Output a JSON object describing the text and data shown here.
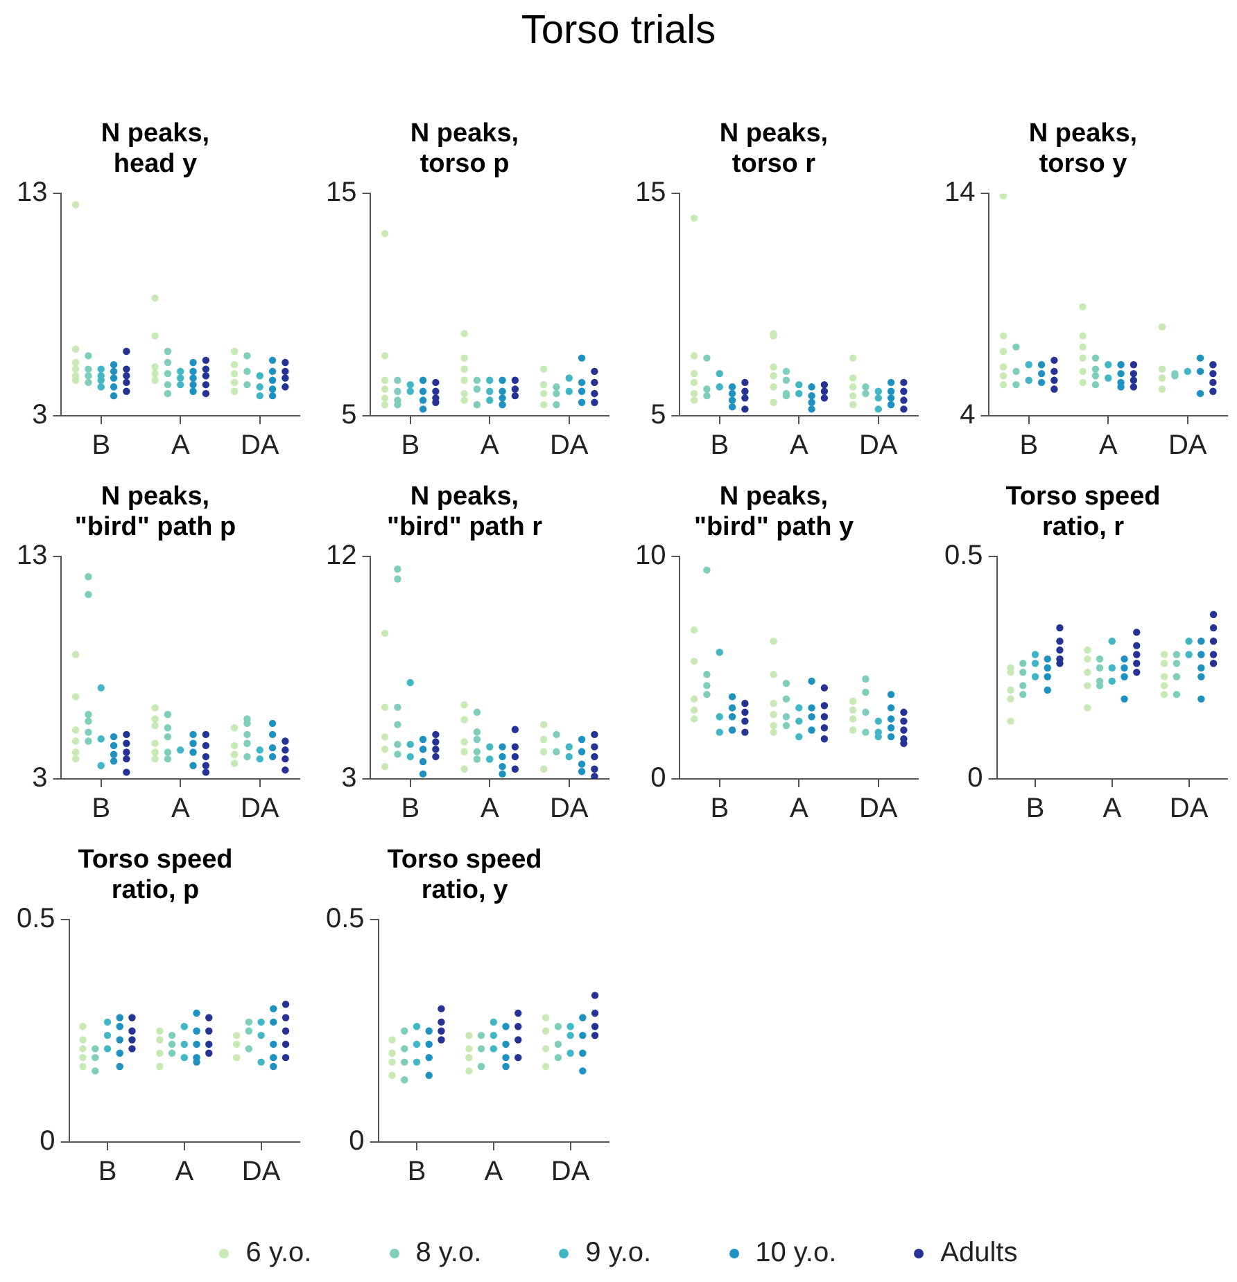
{
  "chart_data": [
    {
      "type": "scatter",
      "title": "N peaks, head y",
      "annotations": [
        "Torso trials"
      ],
      "legend": "bottom",
      "marker": "circle",
      "categories": [
        "B",
        "A",
        "DA"
      ],
      "ylim": [
        3,
        13
      ],
      "yticks": [
        3,
        13
      ],
      "series": [
        {
          "name": "6 y.o.",
          "color": "#c7e9b4",
          "x": [
            "B",
            "B",
            "B",
            "B",
            "B",
            "B",
            "A",
            "A",
            "A",
            "A",
            "A",
            "DA",
            "DA",
            "DA",
            "DA",
            "DA"
          ],
          "values": [
            12.5,
            6.0,
            5.4,
            5.1,
            4.8,
            4.6,
            8.3,
            6.6,
            5.2,
            4.9,
            4.6,
            5.9,
            5.3,
            4.9,
            4.5,
            4.1
          ]
        },
        {
          "name": "8 y.o.",
          "color": "#7fcdbb",
          "x": [
            "B",
            "B",
            "B",
            "B",
            "A",
            "A",
            "A",
            "A",
            "A",
            "DA",
            "DA",
            "DA"
          ],
          "values": [
            5.7,
            5.1,
            4.8,
            4.5,
            5.9,
            5.4,
            4.9,
            4.4,
            4.0,
            5.7,
            5.0,
            4.4
          ]
        },
        {
          "name": "9 y.o.",
          "color": "#41b6c4",
          "x": [
            "B",
            "B",
            "B",
            "B",
            "A",
            "A",
            "A",
            "DA",
            "DA",
            "DA"
          ],
          "values": [
            5.1,
            4.8,
            4.6,
            4.3,
            5.0,
            4.7,
            4.4,
            4.8,
            4.3,
            3.9
          ]
        },
        {
          "name": "10 y.o.",
          "color": "#1d91c0",
          "x": [
            "B",
            "B",
            "B",
            "B",
            "B",
            "A",
            "A",
            "A",
            "A",
            "A",
            "DA",
            "DA",
            "DA",
            "DA",
            "DA"
          ],
          "values": [
            5.3,
            5.0,
            4.7,
            4.3,
            3.9,
            5.4,
            5.0,
            4.7,
            4.4,
            4.1,
            5.5,
            5.0,
            4.6,
            4.2,
            3.9
          ]
        },
        {
          "name": "Adults",
          "color": "#253494",
          "x": [
            "B",
            "B",
            "B",
            "B",
            "B",
            "A",
            "A",
            "A",
            "A",
            "A",
            "DA",
            "DA",
            "DA",
            "DA"
          ],
          "values": [
            5.9,
            5.1,
            4.8,
            4.5,
            4.1,
            5.5,
            5.1,
            4.8,
            4.4,
            4.0,
            5.4,
            5.0,
            4.7,
            4.3
          ]
        }
      ]
    },
    {
      "type": "scatter",
      "title": "N peaks, torso p",
      "marker": "circle",
      "categories": [
        "B",
        "A",
        "DA"
      ],
      "ylim": [
        5,
        15
      ],
      "yticks": [
        5,
        15
      ],
      "series": [
        {
          "color": "#c7e9b4",
          "x": [
            "B",
            "B",
            "B",
            "B",
            "B",
            "B",
            "A",
            "A",
            "A",
            "A",
            "A",
            "A",
            "DA",
            "DA",
            "DA",
            "DA"
          ],
          "values": [
            13.2,
            7.7,
            6.6,
            6.2,
            5.8,
            5.5,
            8.7,
            7.6,
            7.1,
            6.6,
            6.0,
            5.7,
            7.1,
            6.4,
            6.0,
            5.5
          ]
        },
        {
          "color": "#7fcdbb",
          "x": [
            "B",
            "B",
            "B",
            "B",
            "A",
            "A",
            "A",
            "DA",
            "DA",
            "DA"
          ],
          "values": [
            6.6,
            6.1,
            5.7,
            5.5,
            6.6,
            6.2,
            5.5,
            6.3,
            6.0,
            5.5
          ]
        },
        {
          "color": "#41b6c4",
          "x": [
            "B",
            "B",
            "A",
            "A",
            "A",
            "DA",
            "DA"
          ],
          "values": [
            6.4,
            6.1,
            6.6,
            6.1,
            5.7,
            6.7,
            6.1
          ]
        },
        {
          "color": "#1d91c0",
          "x": [
            "B",
            "B",
            "B",
            "B",
            "A",
            "A",
            "A",
            "A",
            "DA",
            "DA",
            "DA",
            "DA"
          ],
          "values": [
            6.6,
            6.1,
            5.7,
            5.3,
            6.6,
            6.1,
            5.8,
            5.5,
            7.6,
            6.5,
            6.1,
            5.6
          ]
        },
        {
          "color": "#253494",
          "x": [
            "B",
            "B",
            "B",
            "B",
            "A",
            "A",
            "A",
            "DA",
            "DA",
            "DA",
            "DA"
          ],
          "values": [
            6.5,
            6.1,
            5.8,
            5.6,
            6.6,
            6.2,
            5.9,
            7.0,
            6.5,
            6.0,
            5.6
          ]
        }
      ]
    },
    {
      "type": "scatter",
      "title": "N peaks, torso r",
      "marker": "circle",
      "categories": [
        "B",
        "A",
        "DA"
      ],
      "ylim": [
        5,
        15
      ],
      "yticks": [
        5,
        15
      ],
      "series": [
        {
          "color": "#c7e9b4",
          "x": [
            "B",
            "B",
            "B",
            "B",
            "B",
            "B",
            "A",
            "A",
            "A",
            "A",
            "A",
            "A",
            "DA",
            "DA",
            "DA",
            "DA",
            "DA"
          ],
          "values": [
            13.9,
            7.7,
            6.9,
            6.5,
            6.0,
            5.7,
            8.7,
            8.6,
            7.2,
            6.8,
            6.3,
            5.6,
            7.6,
            6.7,
            6.3,
            5.9,
            5.5
          ]
        },
        {
          "color": "#7fcdbb",
          "x": [
            "B",
            "B",
            "B",
            "A",
            "A",
            "A",
            "A",
            "DA",
            "DA"
          ],
          "values": [
            7.6,
            6.2,
            5.9,
            7.0,
            6.6,
            6.0,
            5.9,
            6.3,
            6.0
          ]
        },
        {
          "color": "#41b6c4",
          "x": [
            "B",
            "B",
            "A",
            "A",
            "DA",
            "DA",
            "DA"
          ],
          "values": [
            6.9,
            6.3,
            6.4,
            6.0,
            6.1,
            5.8,
            5.3
          ]
        },
        {
          "color": "#1d91c0",
          "x": [
            "B",
            "B",
            "B",
            "B",
            "A",
            "A",
            "A",
            "A",
            "DA",
            "DA",
            "DA",
            "DA"
          ],
          "values": [
            6.3,
            6.0,
            5.7,
            5.4,
            6.3,
            5.9,
            5.6,
            5.3,
            6.5,
            6.1,
            5.8,
            5.5
          ]
        },
        {
          "color": "#253494",
          "x": [
            "B",
            "B",
            "B",
            "B",
            "A",
            "A",
            "A",
            "DA",
            "DA",
            "DA",
            "DA"
          ],
          "values": [
            6.5,
            6.1,
            5.8,
            5.3,
            6.4,
            6.1,
            5.8,
            6.5,
            6.1,
            5.7,
            5.3
          ]
        }
      ]
    },
    {
      "type": "scatter",
      "title": "N peaks, torso y",
      "marker": "circle",
      "categories": [
        "B",
        "A",
        "DA"
      ],
      "ylim": [
        4,
        14
      ],
      "yticks": [
        4,
        14
      ],
      "series": [
        {
          "color": "#c7e9b4",
          "x": [
            "B",
            "B",
            "B",
            "B",
            "B",
            "B",
            "A",
            "A",
            "A",
            "A",
            "A",
            "A",
            "DA",
            "DA",
            "DA",
            "DA"
          ],
          "values": [
            13.9,
            7.6,
            6.9,
            6.2,
            5.8,
            5.4,
            8.9,
            7.6,
            7.1,
            6.6,
            6.0,
            5.5,
            8.0,
            6.1,
            5.7,
            5.2
          ]
        },
        {
          "color": "#7fcdbb",
          "x": [
            "B",
            "B",
            "B",
            "A",
            "A",
            "A",
            "A",
            "DA",
            "DA"
          ],
          "values": [
            7.1,
            6.0,
            5.4,
            6.6,
            6.1,
            5.8,
            5.4,
            5.9,
            5.8
          ]
        },
        {
          "color": "#41b6c4",
          "x": [
            "B",
            "B",
            "A",
            "A",
            "DA"
          ],
          "values": [
            6.3,
            5.6,
            6.3,
            5.7,
            6.0
          ]
        },
        {
          "color": "#1d91c0",
          "x": [
            "B",
            "B",
            "B",
            "A",
            "A",
            "A",
            "A",
            "DA",
            "DA",
            "DA"
          ],
          "values": [
            6.3,
            5.9,
            5.5,
            6.3,
            5.9,
            5.5,
            5.3,
            6.6,
            6.0,
            5.0
          ]
        },
        {
          "color": "#253494",
          "x": [
            "B",
            "B",
            "B",
            "B",
            "A",
            "A",
            "A",
            "A",
            "DA",
            "DA",
            "DA",
            "DA"
          ],
          "values": [
            6.5,
            6.0,
            5.6,
            5.2,
            6.3,
            5.9,
            5.6,
            5.3,
            6.3,
            5.9,
            5.5,
            5.1
          ]
        }
      ]
    },
    {
      "type": "scatter",
      "title": "N peaks, \"bird\" path p",
      "marker": "circle",
      "categories": [
        "B",
        "A",
        "DA"
      ],
      "ylim": [
        3,
        13
      ],
      "yticks": [
        3,
        13
      ],
      "series": [
        {
          "color": "#c7e9b4",
          "x": [
            "B",
            "B",
            "B",
            "B",
            "B",
            "B",
            "A",
            "A",
            "A",
            "A",
            "A",
            "A",
            "DA",
            "DA",
            "DA",
            "DA"
          ],
          "values": [
            8.6,
            6.7,
            5.2,
            4.7,
            4.2,
            3.9,
            6.2,
            5.7,
            5.4,
            4.6,
            4.2,
            3.9,
            5.3,
            4.5,
            4.1,
            3.7
          ]
        },
        {
          "color": "#7fcdbb",
          "x": [
            "B",
            "B",
            "B",
            "B",
            "B",
            "B",
            "A",
            "A",
            "A",
            "A",
            "A",
            "DA",
            "DA",
            "DA",
            "DA",
            "DA"
          ],
          "values": [
            12.1,
            11.3,
            5.9,
            5.6,
            5.1,
            4.7,
            5.9,
            5.3,
            4.9,
            4.2,
            3.9,
            5.7,
            5.5,
            5.0,
            4.6,
            4.0
          ]
        },
        {
          "color": "#41b6c4",
          "x": [
            "B",
            "B",
            "B",
            "A",
            "DA",
            "DA"
          ],
          "values": [
            7.1,
            4.8,
            3.6,
            4.3,
            4.3,
            3.9
          ]
        },
        {
          "color": "#1d91c0",
          "x": [
            "B",
            "B",
            "B",
            "B",
            "A",
            "A",
            "A",
            "A",
            "DA",
            "DA",
            "DA",
            "DA"
          ],
          "values": [
            4.9,
            4.5,
            4.1,
            3.8,
            5.0,
            4.6,
            4.2,
            3.6,
            5.5,
            5.0,
            4.4,
            4.0
          ]
        },
        {
          "color": "#253494",
          "x": [
            "B",
            "B",
            "B",
            "B",
            "B",
            "A",
            "A",
            "A",
            "A",
            "A",
            "DA",
            "DA",
            "DA",
            "DA"
          ],
          "values": [
            5.0,
            4.6,
            4.2,
            3.9,
            3.3,
            5.0,
            4.5,
            4.0,
            3.6,
            3.3,
            4.7,
            4.3,
            3.9,
            3.4
          ]
        }
      ]
    },
    {
      "type": "scatter",
      "title": "N peaks, \"bird\" path r",
      "marker": "circle",
      "categories": [
        "B",
        "A",
        "DA"
      ],
      "ylim": [
        3,
        12
      ],
      "yticks": [
        3,
        12
      ],
      "series": [
        {
          "color": "#c7e9b4",
          "x": [
            "B",
            "B",
            "B",
            "B",
            "B",
            "A",
            "A",
            "A",
            "A",
            "A",
            "DA",
            "DA",
            "DA",
            "DA"
          ],
          "values": [
            8.9,
            5.9,
            4.7,
            4.2,
            3.5,
            6.0,
            5.4,
            4.5,
            4.1,
            3.4,
            5.2,
            4.6,
            4.1,
            3.4
          ]
        },
        {
          "color": "#7fcdbb",
          "x": [
            "B",
            "B",
            "B",
            "B",
            "B",
            "B",
            "A",
            "A",
            "A",
            "A",
            "A",
            "DA",
            "DA"
          ],
          "values": [
            11.5,
            11.1,
            5.9,
            5.2,
            4.4,
            4.0,
            5.7,
            4.9,
            4.6,
            4.1,
            3.8,
            4.8,
            4.1
          ]
        },
        {
          "color": "#41b6c4",
          "x": [
            "B",
            "B",
            "B",
            "A",
            "A",
            "DA",
            "DA"
          ],
          "values": [
            6.9,
            4.4,
            3.9,
            4.3,
            3.8,
            4.3,
            3.9
          ]
        },
        {
          "color": "#1d91c0",
          "x": [
            "B",
            "B",
            "B",
            "B",
            "A",
            "A",
            "A",
            "A",
            "DA",
            "DA",
            "DA",
            "DA"
          ],
          "values": [
            4.6,
            4.2,
            3.7,
            3.2,
            4.3,
            3.9,
            3.5,
            3.2,
            4.6,
            4.1,
            3.6,
            3.3
          ]
        },
        {
          "color": "#253494",
          "x": [
            "B",
            "B",
            "B",
            "B",
            "A",
            "A",
            "A",
            "A",
            "DA",
            "DA",
            "DA",
            "DA",
            "DA"
          ],
          "values": [
            4.8,
            4.5,
            4.2,
            3.9,
            5.0,
            4.3,
            3.9,
            3.4,
            4.8,
            4.3,
            3.9,
            3.4,
            3.1
          ]
        }
      ]
    },
    {
      "type": "scatter",
      "title": "N peaks, \"bird\" path y",
      "marker": "circle",
      "categories": [
        "B",
        "A",
        "DA"
      ],
      "ylim": [
        0,
        10
      ],
      "yticks": [
        0,
        10
      ],
      "series": [
        {
          "color": "#c7e9b4",
          "x": [
            "B",
            "B",
            "B",
            "B",
            "B",
            "A",
            "A",
            "A",
            "A",
            "A",
            "A",
            "DA",
            "DA",
            "DA",
            "DA"
          ],
          "values": [
            6.7,
            5.3,
            3.6,
            3.1,
            2.7,
            6.2,
            4.7,
            3.4,
            2.9,
            2.4,
            2.1,
            3.5,
            3.1,
            2.7,
            2.2
          ]
        },
        {
          "color": "#7fcdbb",
          "x": [
            "B",
            "B",
            "B",
            "B",
            "A",
            "A",
            "A",
            "A",
            "DA",
            "DA",
            "DA",
            "DA"
          ],
          "values": [
            9.4,
            4.7,
            4.2,
            3.8,
            4.3,
            3.6,
            2.8,
            2.4,
            4.5,
            3.9,
            3.0,
            2.1
          ]
        },
        {
          "color": "#41b6c4",
          "x": [
            "B",
            "B",
            "B",
            "A",
            "A",
            "A",
            "DA",
            "DA",
            "DA"
          ],
          "values": [
            5.7,
            2.8,
            2.1,
            3.2,
            2.6,
            1.9,
            2.6,
            2.1,
            1.9
          ]
        },
        {
          "color": "#1d91c0",
          "x": [
            "B",
            "B",
            "B",
            "B",
            "A",
            "A",
            "A",
            "A",
            "DA",
            "DA",
            "DA",
            "DA",
            "DA"
          ],
          "values": [
            3.7,
            3.2,
            2.8,
            2.2,
            4.4,
            3.2,
            2.8,
            2.2,
            3.8,
            3.2,
            2.7,
            2.3,
            1.9
          ]
        },
        {
          "color": "#253494",
          "x": [
            "B",
            "B",
            "B",
            "B",
            "A",
            "A",
            "A",
            "A",
            "A",
            "DA",
            "DA",
            "DA",
            "DA",
            "DA"
          ],
          "values": [
            3.4,
            3.0,
            2.6,
            2.1,
            4.1,
            3.3,
            2.8,
            2.3,
            1.8,
            3.0,
            2.6,
            2.2,
            1.8,
            1.6
          ]
        }
      ]
    },
    {
      "type": "scatter",
      "title": "Torso speed ratio, r",
      "marker": "circle",
      "categories": [
        "B",
        "A",
        "DA"
      ],
      "ylim": [
        0,
        0.5
      ],
      "yticks": [
        0,
        0.5
      ],
      "series": [
        {
          "color": "#c7e9b4",
          "x": [
            "B",
            "B",
            "B",
            "B",
            "B",
            "A",
            "A",
            "A",
            "A",
            "A",
            "DA",
            "DA",
            "DA",
            "DA",
            "DA"
          ],
          "values": [
            0.25,
            0.24,
            0.2,
            0.18,
            0.13,
            0.29,
            0.27,
            0.24,
            0.21,
            0.16,
            0.28,
            0.26,
            0.23,
            0.21,
            0.19
          ]
        },
        {
          "color": "#7fcdbb",
          "x": [
            "B",
            "B",
            "B",
            "B",
            "A",
            "A",
            "A",
            "A",
            "DA",
            "DA",
            "DA",
            "DA"
          ],
          "values": [
            0.26,
            0.24,
            0.21,
            0.19,
            0.27,
            0.25,
            0.22,
            0.21,
            0.28,
            0.26,
            0.23,
            0.19
          ]
        },
        {
          "color": "#41b6c4",
          "x": [
            "B",
            "B",
            "B",
            "A",
            "A",
            "A",
            "DA",
            "DA"
          ],
          "values": [
            0.28,
            0.26,
            0.23,
            0.31,
            0.25,
            0.22,
            0.31,
            0.28
          ]
        },
        {
          "color": "#1d91c0",
          "x": [
            "B",
            "B",
            "B",
            "B",
            "A",
            "A",
            "A",
            "A",
            "DA",
            "DA",
            "DA",
            "DA",
            "DA"
          ],
          "values": [
            0.27,
            0.25,
            0.23,
            0.2,
            0.27,
            0.25,
            0.23,
            0.18,
            0.31,
            0.28,
            0.25,
            0.23,
            0.18
          ]
        },
        {
          "color": "#253494",
          "x": [
            "B",
            "B",
            "B",
            "B",
            "B",
            "A",
            "A",
            "A",
            "A",
            "A",
            "DA",
            "DA",
            "DA",
            "DA",
            "DA"
          ],
          "values": [
            0.34,
            0.31,
            0.29,
            0.27,
            0.26,
            0.33,
            0.3,
            0.28,
            0.26,
            0.24,
            0.37,
            0.34,
            0.31,
            0.28,
            0.26
          ]
        }
      ]
    },
    {
      "type": "scatter",
      "title": "Torso speed ratio, p",
      "marker": "circle",
      "categories": [
        "B",
        "A",
        "DA"
      ],
      "ylim": [
        0,
        0.5
      ],
      "yticks": [
        0,
        0.5
      ],
      "series": [
        {
          "color": "#c7e9b4",
          "x": [
            "B",
            "B",
            "B",
            "B",
            "B",
            "A",
            "A",
            "A",
            "A",
            "DA",
            "DA",
            "DA"
          ],
          "values": [
            0.26,
            0.23,
            0.21,
            0.19,
            0.17,
            0.25,
            0.23,
            0.2,
            0.17,
            0.24,
            0.22,
            0.19
          ]
        },
        {
          "color": "#7fcdbb",
          "x": [
            "B",
            "B",
            "B",
            "A",
            "A",
            "A",
            "DA",
            "DA",
            "DA"
          ],
          "values": [
            0.21,
            0.19,
            0.16,
            0.24,
            0.22,
            0.2,
            0.27,
            0.25,
            0.21
          ]
        },
        {
          "color": "#41b6c4",
          "x": [
            "B",
            "B",
            "B",
            "A",
            "A",
            "A",
            "DA",
            "DA",
            "DA"
          ],
          "values": [
            0.27,
            0.24,
            0.21,
            0.26,
            0.22,
            0.19,
            0.27,
            0.24,
            0.18
          ]
        },
        {
          "color": "#1d91c0",
          "x": [
            "B",
            "B",
            "B",
            "B",
            "B",
            "A",
            "A",
            "A",
            "A",
            "A",
            "DA",
            "DA",
            "DA",
            "DA",
            "DA"
          ],
          "values": [
            0.28,
            0.26,
            0.23,
            0.2,
            0.17,
            0.29,
            0.25,
            0.22,
            0.19,
            0.18,
            0.3,
            0.27,
            0.22,
            0.19,
            0.17
          ]
        },
        {
          "color": "#253494",
          "x": [
            "B",
            "B",
            "B",
            "B",
            "A",
            "A",
            "A",
            "A",
            "DA",
            "DA",
            "DA",
            "DA",
            "DA"
          ],
          "values": [
            0.28,
            0.25,
            0.23,
            0.21,
            0.28,
            0.25,
            0.22,
            0.2,
            0.31,
            0.28,
            0.25,
            0.22,
            0.19
          ]
        }
      ]
    },
    {
      "type": "scatter",
      "title": "Torso speed ratio, y",
      "marker": "circle",
      "categories": [
        "B",
        "A",
        "DA"
      ],
      "ylim": [
        0,
        0.5
      ],
      "yticks": [
        0,
        0.5
      ],
      "series": [
        {
          "color": "#c7e9b4",
          "x": [
            "B",
            "B",
            "B",
            "B",
            "A",
            "A",
            "A",
            "A",
            "DA",
            "DA",
            "DA",
            "DA"
          ],
          "values": [
            0.23,
            0.2,
            0.18,
            0.15,
            0.24,
            0.21,
            0.19,
            0.16,
            0.28,
            0.25,
            0.21,
            0.17
          ]
        },
        {
          "color": "#7fcdbb",
          "x": [
            "B",
            "B",
            "B",
            "B",
            "A",
            "A",
            "A",
            "DA",
            "DA",
            "DA"
          ],
          "values": [
            0.25,
            0.21,
            0.18,
            0.14,
            0.24,
            0.21,
            0.17,
            0.26,
            0.22,
            0.19
          ]
        },
        {
          "color": "#41b6c4",
          "x": [
            "B",
            "B",
            "B",
            "A",
            "A",
            "A",
            "DA",
            "DA",
            "DA"
          ],
          "values": [
            0.26,
            0.22,
            0.18,
            0.27,
            0.24,
            0.21,
            0.26,
            0.24,
            0.2
          ]
        },
        {
          "color": "#1d91c0",
          "x": [
            "B",
            "B",
            "B",
            "B",
            "A",
            "A",
            "A",
            "A",
            "DA",
            "DA",
            "DA",
            "DA"
          ],
          "values": [
            0.25,
            0.22,
            0.19,
            0.15,
            0.26,
            0.22,
            0.19,
            0.17,
            0.28,
            0.24,
            0.2,
            0.16
          ]
        },
        {
          "color": "#253494",
          "x": [
            "B",
            "B",
            "B",
            "B",
            "A",
            "A",
            "A",
            "A",
            "DA",
            "DA",
            "DA",
            "DA"
          ],
          "values": [
            0.3,
            0.27,
            0.25,
            0.23,
            0.29,
            0.26,
            0.23,
            0.19,
            0.33,
            0.29,
            0.26,
            0.24
          ]
        }
      ]
    }
  ]
}
